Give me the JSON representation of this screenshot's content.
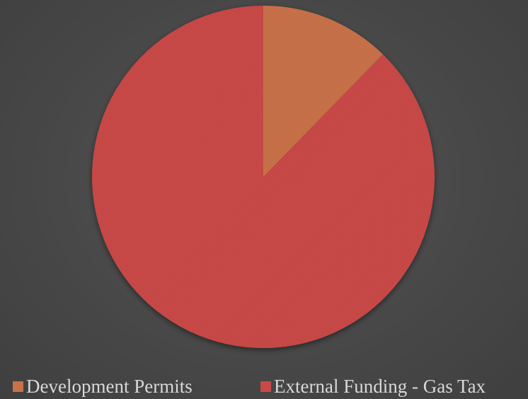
{
  "chart_data": {
    "type": "pie",
    "title": "",
    "categories": [
      "Development Permits",
      "External Funding - Gas Tax"
    ],
    "values": [
      12.3,
      87.7
    ],
    "colors": [
      "#c8714a",
      "#c84a46"
    ],
    "legend_position": "bottom",
    "start_angle": "12 o'clock",
    "direction": "clockwise"
  },
  "background_color": "#4a4a4a",
  "legend": {
    "items": [
      {
        "label": "Development Permits",
        "color": "#c8714a"
      },
      {
        "label": "External Funding - Gas Tax",
        "color": "#c84a46"
      }
    ]
  }
}
